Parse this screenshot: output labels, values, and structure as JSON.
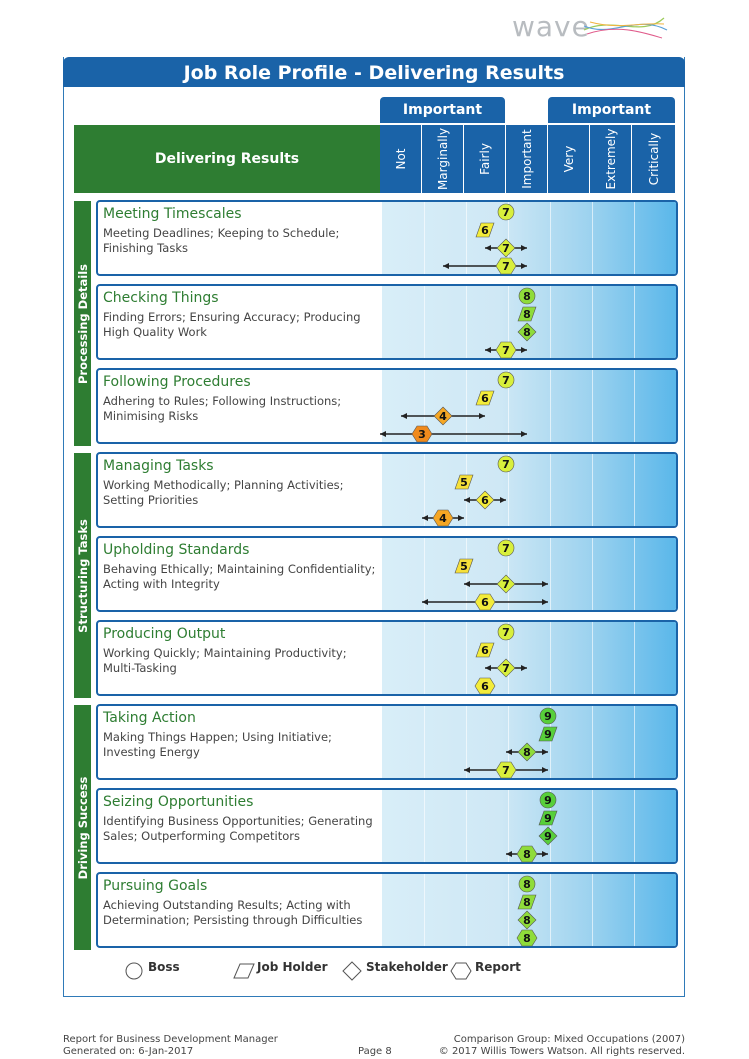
{
  "brand": {
    "logo_text": "wave"
  },
  "title": "Job Role Profile - Delivering Results",
  "header": {
    "section_label": "Delivering Results",
    "important_left": "Important",
    "important_right": "Important",
    "scale": [
      "Not",
      "Marginally",
      "Fairly",
      "Important",
      "Very",
      "Extremely",
      "Critically"
    ]
  },
  "categories": [
    {
      "label": "Processing Details",
      "rows": [
        0,
        1,
        2
      ]
    },
    {
      "label": "Structuring Tasks",
      "rows": [
        3,
        4,
        5
      ]
    },
    {
      "label": "Driving Success",
      "rows": [
        6,
        7,
        8
      ]
    }
  ],
  "rows": [
    {
      "name": "Meeting Timescales",
      "desc": "Meeting Deadlines; Keeping to Schedule; Finishing Tasks",
      "boss": 7,
      "job_holder": 6,
      "stakeholder": {
        "value": 7,
        "low": 6,
        "high": 8
      },
      "report": {
        "value": 7,
        "low": 4,
        "high": 8
      }
    },
    {
      "name": "Checking Things",
      "desc": "Finding Errors; Ensuring Accuracy; Producing High Quality Work",
      "boss": 8,
      "job_holder": 8,
      "stakeholder": {
        "value": 8
      },
      "report": {
        "value": 7,
        "low": 6,
        "high": 8
      }
    },
    {
      "name": "Following Procedures",
      "desc": "Adhering to Rules; Following Instructions; Minimising Risks",
      "boss": 7,
      "job_holder": 6,
      "stakeholder": {
        "value": 4,
        "low": 2,
        "high": 6
      },
      "report": {
        "value": 3,
        "low": 1,
        "high": 8
      }
    },
    {
      "name": "Managing Tasks",
      "desc": "Working Methodically; Planning Activities; Setting Priorities",
      "boss": 7,
      "job_holder": 5,
      "stakeholder": {
        "value": 6,
        "low": 5,
        "high": 7
      },
      "report": {
        "value": 4,
        "low": 3,
        "high": 5
      }
    },
    {
      "name": "Upholding Standards",
      "desc": "Behaving Ethically; Maintaining Confidentiality; Acting with Integrity",
      "boss": 7,
      "job_holder": 5,
      "stakeholder": {
        "value": 7,
        "low": 5,
        "high": 9
      },
      "report": {
        "value": 6,
        "low": 3,
        "high": 9
      }
    },
    {
      "name": "Producing Output",
      "desc": "Working Quickly; Maintaining Productivity; Multi-Tasking",
      "boss": 7,
      "job_holder": 6,
      "stakeholder": {
        "value": 7,
        "low": 6,
        "high": 8
      },
      "report": {
        "value": 6
      }
    },
    {
      "name": "Taking Action",
      "desc": "Making Things Happen; Using Initiative; Investing Energy",
      "boss": 9,
      "job_holder": 9,
      "stakeholder": {
        "value": 8,
        "low": 7,
        "high": 9
      },
      "report": {
        "value": 7,
        "low": 5,
        "high": 9
      }
    },
    {
      "name": "Seizing Opportunities",
      "desc": "Identifying Business Opportunities; Generating Sales; Outperforming Competitors",
      "boss": 9,
      "job_holder": 9,
      "stakeholder": {
        "value": 9
      },
      "report": {
        "value": 8,
        "low": 7,
        "high": 9
      }
    },
    {
      "name": "Pursuing Goals",
      "desc": "Achieving Outstanding Results; Acting with Determination; Persisting through Difficulties",
      "boss": 8,
      "job_holder": 8,
      "stakeholder": {
        "value": 8
      },
      "report": {
        "value": 8
      }
    }
  ],
  "legend": {
    "boss": "Boss",
    "job_holder": "Job Holder",
    "stakeholder": "Stakeholder",
    "report": "Report"
  },
  "footer": {
    "report_for": "Report for Business Development Manager",
    "generated": "Generated on: 6-Jan-2017",
    "page": "Page 8",
    "comparison": "Comparison Group: Mixed Occupations (2007)",
    "copyright": "© 2017 Willis Towers Watson. All rights reserved."
  },
  "colors": {
    "blue": "#1a63a8",
    "green": "#2e7d32",
    "score_3": "#f08a1c",
    "score_4": "#f5a623",
    "score_5": "#f6e03a",
    "score_6": "#f3ec3a",
    "score_7": "#d8ef3c",
    "score_8": "#8fdc3a",
    "score_9": "#57cf3a"
  }
}
